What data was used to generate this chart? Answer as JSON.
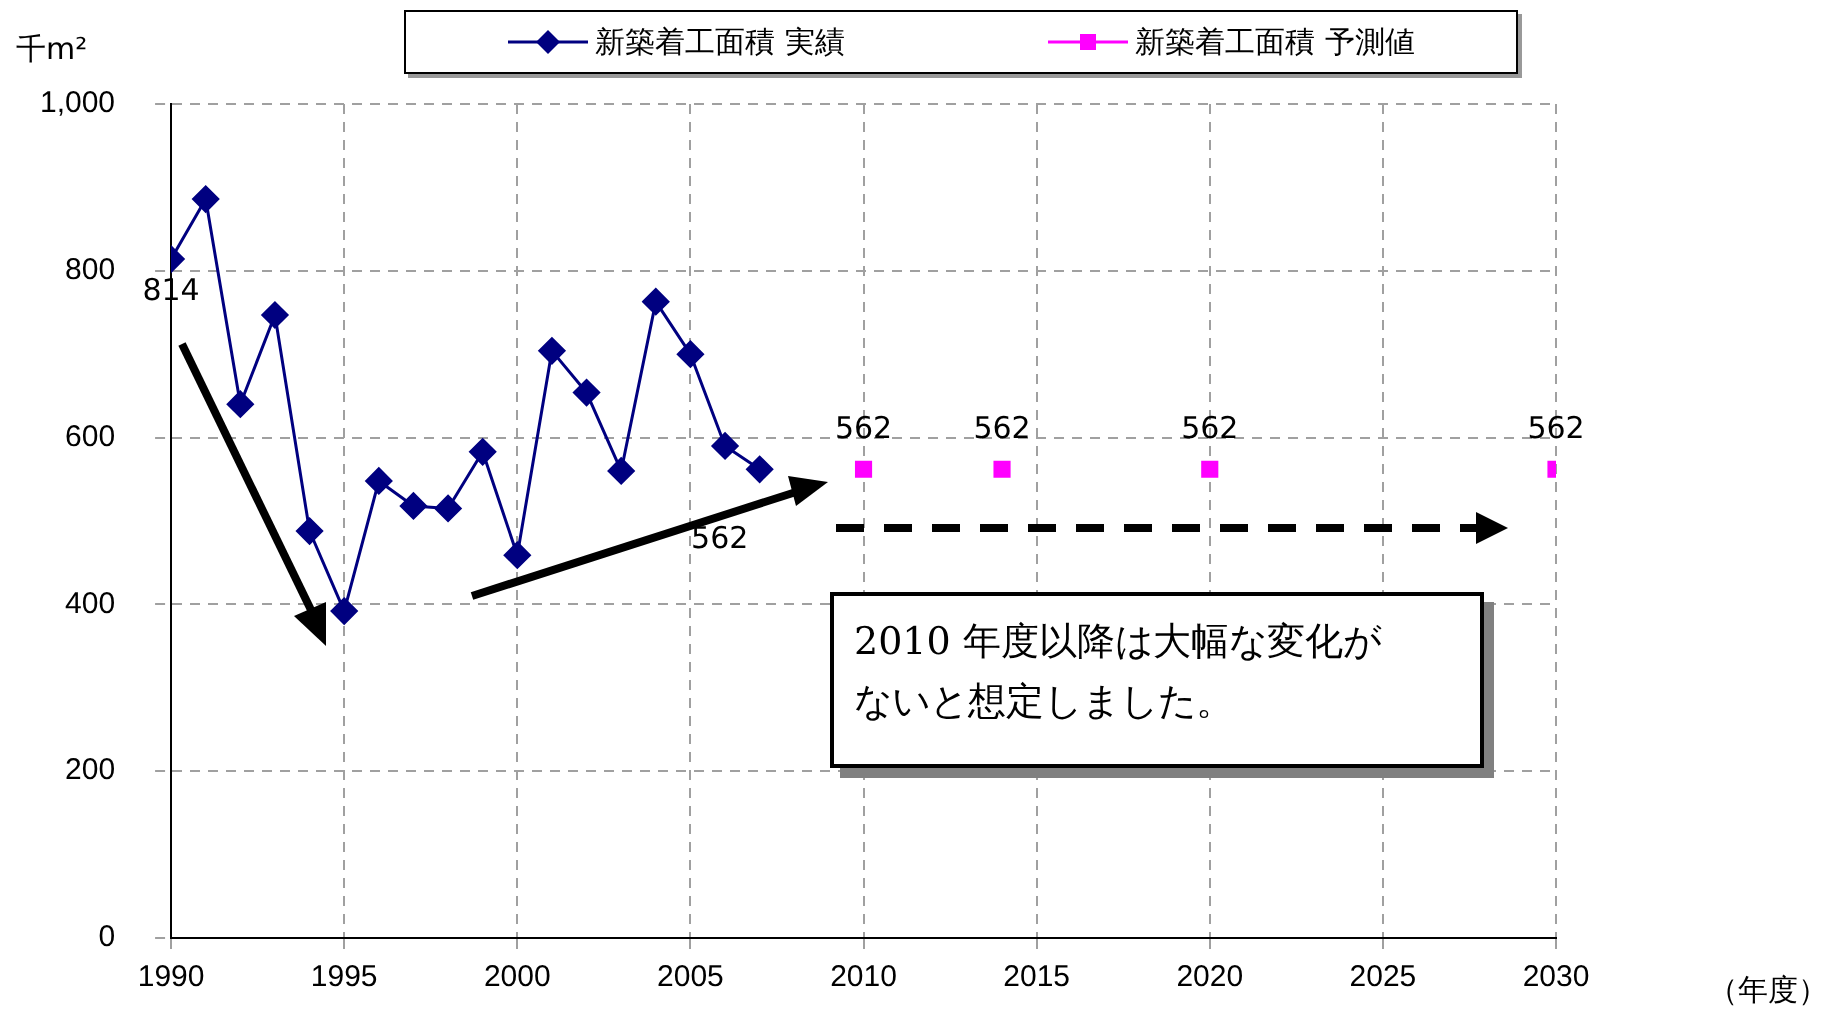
{
  "chart_data": {
    "type": "line",
    "ylabel": "千m²",
    "xlabel": "（年度）",
    "xlim": [
      1990,
      2030
    ],
    "xticks": [
      1990,
      1995,
      2000,
      2005,
      2010,
      2015,
      2020,
      2025,
      2030
    ],
    "ylim": [
      0,
      1000
    ],
    "yticks": [
      0,
      200,
      400,
      600,
      800,
      {
        "value": 1000,
        "label": "1,000"
      }
    ],
    "grid": true,
    "legend": "top",
    "series": [
      {
        "name": "新築着工面積 実績",
        "color": "#000080",
        "marker": "diamond",
        "x": [
          1990,
          1991,
          1992,
          1993,
          1994,
          1995,
          1996,
          1997,
          1998,
          1999,
          2000,
          2001,
          2002,
          2003,
          2004,
          2005,
          2006,
          2007
        ],
        "values": [
          814,
          886,
          640,
          747,
          488,
          392,
          548,
          518,
          515,
          583,
          459,
          704,
          654,
          560,
          763,
          700,
          590,
          562
        ],
        "value_labels": [
          "814",
          null,
          null,
          null,
          null,
          null,
          null,
          null,
          null,
          null,
          null,
          null,
          null,
          null,
          null,
          null,
          null,
          "562"
        ]
      },
      {
        "name": "新築着工面積 予測値",
        "type": "scatter",
        "color": "#ff00ff",
        "marker": "square",
        "x": [
          2010,
          2014,
          2020,
          2030
        ],
        "values": [
          562,
          562,
          562,
          562
        ],
        "value_labels": [
          "562",
          "562",
          "562",
          "562"
        ]
      }
    ],
    "annotations": [
      "2010 年度以降は大幅な変化がないと想定しました。"
    ]
  }
}
